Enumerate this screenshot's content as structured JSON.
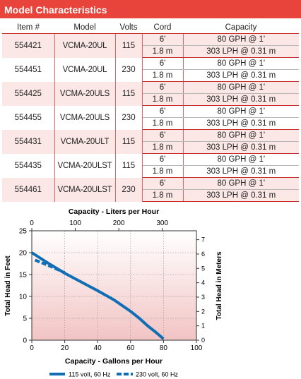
{
  "header": {
    "title": "Model Characteristics"
  },
  "table": {
    "columns": [
      "Item #",
      "Model",
      "Volts",
      "Cord",
      "Capacity"
    ],
    "rows": [
      {
        "item": "554421",
        "model": "VCMA-20UL",
        "volts": "115",
        "cord_ft": "6'",
        "cord_m": "1.8 m",
        "cap_gph": "80 GPH @ 1'",
        "cap_lph": "303 LPH @ 0.31 m"
      },
      {
        "item": "554451",
        "model": "VCMA-20UL",
        "volts": "230",
        "cord_ft": "6'",
        "cord_m": "1.8 m",
        "cap_gph": "80 GPH @ 1'",
        "cap_lph": "303 LPH @ 0.31 m"
      },
      {
        "item": "554425",
        "model": "VCMA-20ULS",
        "volts": "115",
        "cord_ft": "6'",
        "cord_m": "1.8 m",
        "cap_gph": "80 GPH @ 1'",
        "cap_lph": "303 LPH @ 0.31 m"
      },
      {
        "item": "554455",
        "model": "VCMA-20ULS",
        "volts": "230",
        "cord_ft": "6'",
        "cord_m": "1.8 m",
        "cap_gph": "80 GPH @ 1'",
        "cap_lph": "303 LPH @ 0.31 m"
      },
      {
        "item": "554431",
        "model": "VCMA-20ULT",
        "volts": "115",
        "cord_ft": "6'",
        "cord_m": "1.8 m",
        "cap_gph": "80 GPH @ 1'",
        "cap_lph": "303 LPH @ 0.31 m"
      },
      {
        "item": "554435",
        "model": "VCMA-20ULST",
        "volts": "115",
        "cord_ft": "6'",
        "cord_m": "1.8 m",
        "cap_gph": "80 GPH @ 1'",
        "cap_lph": "303 LPH @ 0.31 m"
      },
      {
        "item": "554461",
        "model": "VCMA-20ULST",
        "volts": "230",
        "cord_ft": "6'",
        "cord_m": "1.8 m",
        "cap_gph": "80 GPH @ 1'",
        "cap_lph": "303 LPH @ 0.31 m"
      }
    ]
  },
  "chart_data": {
    "type": "line",
    "title_top": "Capacity - Liters per Hour",
    "xlabel": "Capacity - Gallons per Hour",
    "ylabel_left": "Total Head in Feet",
    "ylabel_right": "Total Head in Meters",
    "xlim": [
      0,
      100
    ],
    "ylim": [
      0,
      25
    ],
    "x_ticks": [
      0,
      20,
      40,
      60,
      80,
      100
    ],
    "y_ticks": [
      0,
      5,
      10,
      15,
      20,
      25
    ],
    "top_ticks": [
      0,
      100,
      200,
      300
    ],
    "right_ticks": [
      0,
      1,
      2,
      3,
      4,
      5,
      6,
      7
    ],
    "grid": true,
    "legend_position": "bottom",
    "series": [
      {
        "name": "115 volt, 60 Hz",
        "style": "solid",
        "color": "#0f6eb4",
        "x": [
          0,
          10,
          20,
          30,
          40,
          50,
          60,
          65,
          70,
          75,
          80
        ],
        "y": [
          20,
          17.6,
          15.3,
          13.3,
          11.3,
          9.2,
          6.6,
          5.1,
          3.4,
          1.9,
          0.3
        ]
      },
      {
        "name": "230 volt, 60 Hz",
        "style": "dashed",
        "color": "#0f6eb4",
        "x": [
          2,
          10,
          20
        ],
        "y": [
          18.3,
          17.1,
          15.4
        ]
      }
    ]
  }
}
